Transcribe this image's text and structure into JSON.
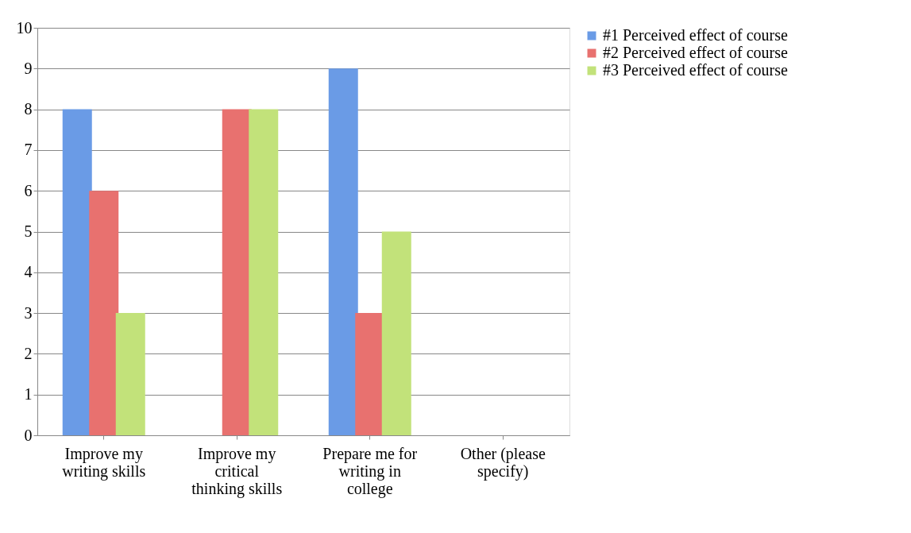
{
  "chart_data": {
    "type": "bar",
    "categories": [
      "Improve my writing skills",
      "Improve my critical thinking skills",
      "Prepare me for writing in college",
      "Other (please specify)"
    ],
    "series": [
      {
        "name": "#1 Perceived effect of course",
        "color": "#6a9be6",
        "values": [
          8,
          0,
          9,
          0
        ]
      },
      {
        "name": "#2 Perceived effect of course",
        "color": "#e8716f",
        "values": [
          6,
          8,
          3,
          0
        ]
      },
      {
        "name": "#3 Perceived effect of course",
        "color": "#c2e27a",
        "values": [
          3,
          8,
          5,
          0
        ]
      }
    ],
    "ylim": [
      0,
      10
    ],
    "yticks": [
      0,
      1,
      2,
      3,
      4,
      5,
      6,
      7,
      8,
      9,
      10
    ],
    "grid": "y",
    "legend": "right"
  }
}
